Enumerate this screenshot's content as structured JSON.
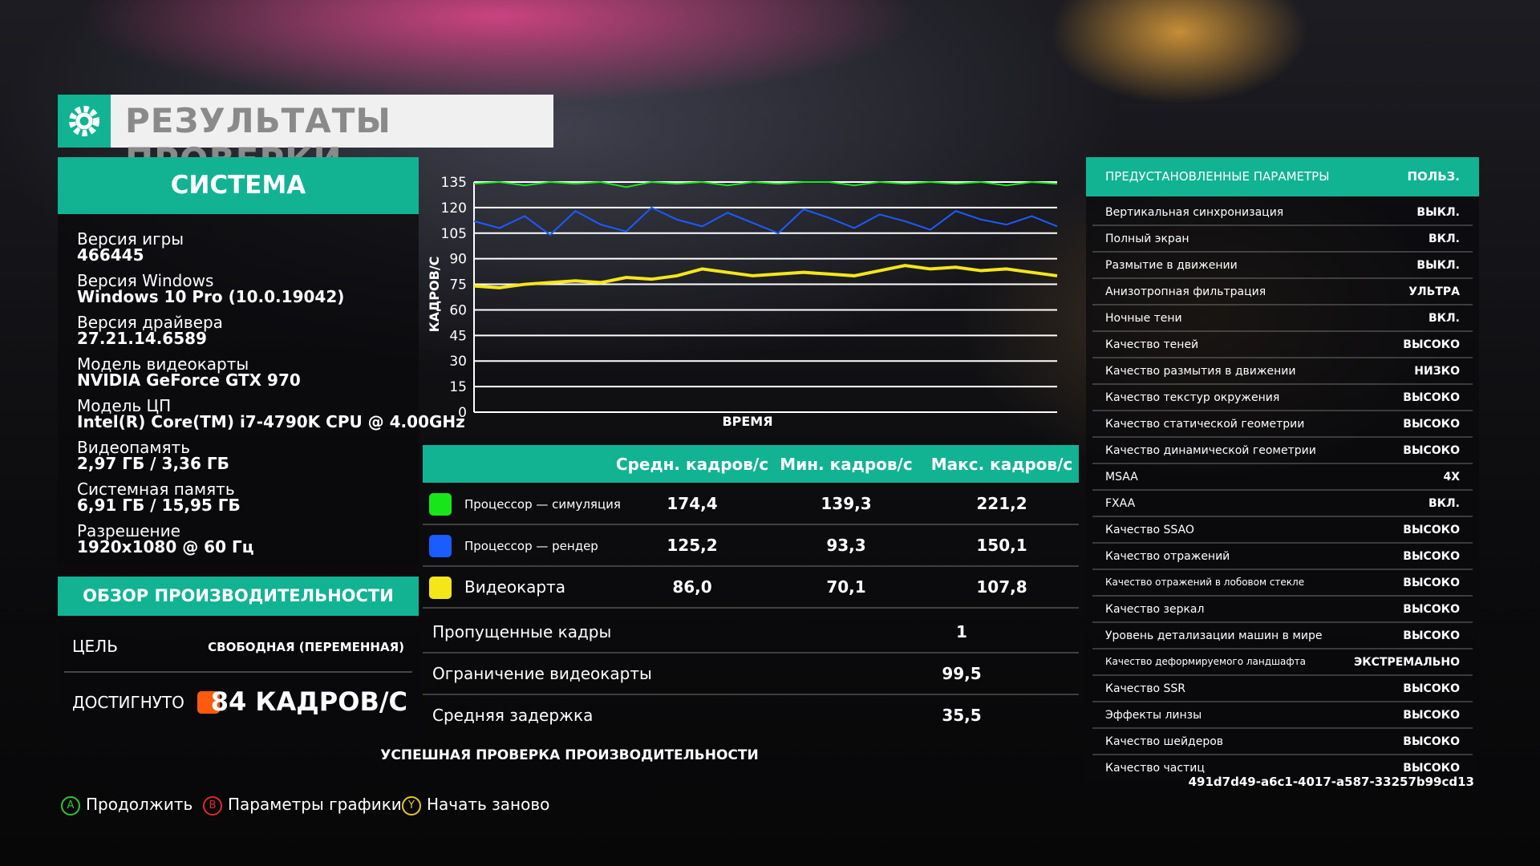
{
  "header": {
    "title": "РЕЗУЛЬТАТЫ ПРОВЕРКИ"
  },
  "system": {
    "title": "СИСТЕМА",
    "items": [
      {
        "label": "Версия игры",
        "value": "466445"
      },
      {
        "label": "Версия Windows",
        "value": "Windows 10 Pro (10.0.19042)"
      },
      {
        "label": "Версия драйвера",
        "value": "27.21.14.6589"
      },
      {
        "label": "Модель видеокарты",
        "value": "NVIDIA GeForce GTX 970"
      },
      {
        "label": "Модель ЦП",
        "value": "Intel(R) Core(TM) i7-4790K CPU @ 4.00GHz"
      },
      {
        "label": "Видеопамять",
        "value": "2,97 ГБ / 3,36 ГБ"
      },
      {
        "label": "Системная память",
        "value": "6,91 ГБ / 15,95 ГБ"
      },
      {
        "label": "Разрешение",
        "value": "1920x1080 @ 60 Гц"
      }
    ]
  },
  "overview": {
    "title": "ОБЗОР ПРОИЗВОДИТЕЛЬНОСТИ",
    "rows": [
      {
        "label": "ЦЕЛЬ",
        "value": "СВОБОДНАЯ (ПЕРЕМЕННАЯ)"
      },
      {
        "label": "ДОСТИГНУТО",
        "value": "84 КАДРОВ/С",
        "color": "#ff5a10"
      }
    ]
  },
  "chart_data": {
    "type": "line",
    "ylabel": "КАДРОВ/С",
    "xlabel": "ВРЕМЯ",
    "ylim": [
      0,
      135
    ],
    "yticks": [
      0,
      15,
      30,
      45,
      60,
      75,
      90,
      105,
      120,
      135
    ],
    "grid": true,
    "series": [
      {
        "name": "Процессор — симуляция",
        "color": "#19e619",
        "values": [
          134,
          135,
          133,
          135,
          134,
          135,
          132,
          135,
          134,
          135,
          133,
          135,
          134,
          135,
          135,
          133,
          135,
          134,
          135,
          134,
          135,
          133,
          135,
          134
        ]
      },
      {
        "name": "Процессор — рендер",
        "color": "#1a5cff",
        "values": [
          112,
          108,
          115,
          104,
          118,
          110,
          106,
          120,
          113,
          109,
          117,
          111,
          105,
          119,
          114,
          108,
          116,
          112,
          107,
          118,
          113,
          110,
          115,
          109
        ]
      },
      {
        "name": "Видеокарта",
        "color": "#f5e61a",
        "values": [
          74,
          73,
          75,
          76,
          77,
          76,
          79,
          78,
          80,
          84,
          82,
          80,
          81,
          82,
          81,
          80,
          83,
          86,
          84,
          85,
          83,
          84,
          82,
          80
        ]
      }
    ]
  },
  "stats": {
    "headers": [
      "Средн. кадров/с",
      "Мин. кадров/с",
      "Макс. кадров/с"
    ],
    "rows": [
      [
        "174,4",
        "139,3",
        "221,2"
      ],
      [
        "125,2",
        "93,3",
        "150,1"
      ],
      [
        "86,0",
        "70,1",
        "107,8"
      ]
    ],
    "extra": [
      {
        "label": "Пропущенные кадры",
        "value": "1"
      },
      {
        "label": "Ограничение видеокарты",
        "value": "99,5"
      },
      {
        "label": "Средняя задержка",
        "value": "35,5"
      }
    ]
  },
  "status": "УСПЕШНАЯ ПРОВЕРКА ПРОИЗВОДИТЕЛЬНОСТИ",
  "settings": {
    "title": "ПРЕДУСТАНОВЛЕННЫЕ ПАРАМЕТРЫ",
    "preset": "ПОЛЬЗ.",
    "rows": [
      [
        "Вертикальная синхронизация",
        "ВЫКЛ."
      ],
      [
        "Полный экран",
        "ВКЛ."
      ],
      [
        "Размытие в движении",
        "ВЫКЛ."
      ],
      [
        "Анизотропная фильтрация",
        "УЛЬТРА"
      ],
      [
        "Ночные тени",
        "ВКЛ."
      ],
      [
        "Качество теней",
        "ВЫСОКО"
      ],
      [
        "Качество размытия в движении",
        "НИЗКО"
      ],
      [
        "Качество текстур окружения",
        "ВЫСОКО"
      ],
      [
        "Качество статической геометрии",
        "ВЫСОКО"
      ],
      [
        "Качество динамической геометрии",
        "ВЫСОКО"
      ],
      [
        "MSAA",
        "4X"
      ],
      [
        "FXAA",
        "ВКЛ."
      ],
      [
        "Качество SSAO",
        "ВЫСОКО"
      ],
      [
        "Качество отражений",
        "ВЫСОКО"
      ],
      [
        "Качество отражений в лобовом стекле",
        "ВЫСОКО"
      ],
      [
        "Качество зеркал",
        "ВЫСОКО"
      ],
      [
        "Уровень детализации машин в мире",
        "ВЫСОКО"
      ],
      [
        "Качество деформируемого ландшафта",
        "ЭКСТРЕМАЛЬНО"
      ],
      [
        "Качество SSR",
        "ВЫСОКО"
      ],
      [
        "Эффекты линзы",
        "ВЫСОКО"
      ],
      [
        "Качество шейдеров",
        "ВЫСОКО"
      ],
      [
        "Качество частиц",
        "ВЫСОКО"
      ]
    ]
  },
  "id": "491d7d49-a6c1-4017-a587-33257b99cd13",
  "buttons": [
    {
      "key": "A",
      "label": "Продолжить",
      "color": "#2fc42f"
    },
    {
      "key": "B",
      "label": "Параметры графики",
      "color": "#e02828"
    },
    {
      "key": "Y",
      "label": "Начать заново",
      "color": "#e6c81a"
    }
  ]
}
